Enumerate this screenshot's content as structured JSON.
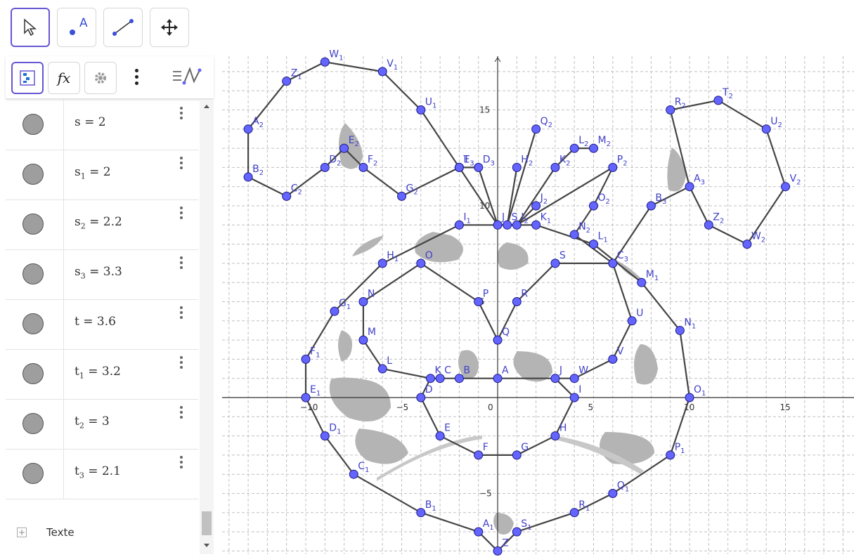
{
  "toolbar": {
    "tools": [
      "move-tool",
      "point-tool",
      "segment-tool",
      "move-graphics-tool"
    ],
    "point_tool_label": "A"
  },
  "algebra": {
    "header_icons": [
      "algebra-view-icon",
      "function-icon",
      "settings-icon",
      "more-icon",
      "description-icon"
    ],
    "rows": [
      {
        "name": "s",
        "sub": "",
        "value": "2"
      },
      {
        "name": "s",
        "sub": "1",
        "value": "2"
      },
      {
        "name": "s",
        "sub": "2",
        "value": "2.2"
      },
      {
        "name": "s",
        "sub": "3",
        "value": "3.3"
      },
      {
        "name": "t",
        "sub": "",
        "value": "3.6"
      },
      {
        "name": "t",
        "sub": "1",
        "value": "3.2"
      },
      {
        "name": "t",
        "sub": "2",
        "value": "3"
      },
      {
        "name": "t",
        "sub": "3",
        "value": "2.1"
      }
    ],
    "input_label": "Texte"
  },
  "graph": {
    "x_ticks": [
      "−10",
      "−5",
      "0",
      "5",
      "10",
      "15"
    ],
    "y_ticks": [
      "15",
      "10",
      "5",
      "−5"
    ],
    "point_color": "#6464ff",
    "line_color": "#444444",
    "points": [
      {
        "n": "A",
        "s": "",
        "x": 0,
        "y": 1
      },
      {
        "n": "B",
        "s": "",
        "x": -2,
        "y": 1
      },
      {
        "n": "C",
        "s": "",
        "x": -3,
        "y": 1
      },
      {
        "n": "K",
        "s": "",
        "x": -3.5,
        "y": 1
      },
      {
        "n": "D",
        "s": "",
        "x": -4,
        "y": 0
      },
      {
        "n": "E",
        "s": "",
        "x": -3,
        "y": -2
      },
      {
        "n": "F",
        "s": "",
        "x": -1,
        "y": -3
      },
      {
        "n": "G",
        "s": "",
        "x": 1,
        "y": -3
      },
      {
        "n": "H",
        "s": "",
        "x": 3,
        "y": -2
      },
      {
        "n": "I",
        "s": "",
        "x": 4,
        "y": 0
      },
      {
        "n": "J",
        "s": "",
        "x": 3,
        "y": 1
      },
      {
        "n": "W",
        "s": "",
        "x": 4,
        "y": 1
      },
      {
        "n": "V",
        "s": "",
        "x": 6,
        "y": 2
      },
      {
        "n": "U",
        "s": "",
        "x": 7,
        "y": 4
      },
      {
        "n": "S",
        "s": "",
        "x": 3,
        "y": 7
      },
      {
        "n": "R",
        "s": "",
        "x": 1,
        "y": 5
      },
      {
        "n": "Q",
        "s": "",
        "x": 0,
        "y": 3
      },
      {
        "n": "P",
        "s": "",
        "x": -1,
        "y": 5
      },
      {
        "n": "O",
        "s": "",
        "x": -4,
        "y": 7
      },
      {
        "n": "N",
        "s": "",
        "x": -7,
        "y": 5
      },
      {
        "n": "M",
        "s": "",
        "x": -7,
        "y": 3
      },
      {
        "n": "L",
        "s": "",
        "x": -6,
        "y": 1.5
      },
      {
        "n": "I",
        "s": "1",
        "x": -2,
        "y": 9
      },
      {
        "n": "H",
        "s": "1",
        "x": -6,
        "y": 7
      },
      {
        "n": "G",
        "s": "1",
        "x": -8.5,
        "y": 4.5
      },
      {
        "n": "F",
        "s": "1",
        "x": -10,
        "y": 2
      },
      {
        "n": "E",
        "s": "1",
        "x": -10,
        "y": 0
      },
      {
        "n": "D",
        "s": "1",
        "x": -9,
        "y": -2
      },
      {
        "n": "C",
        "s": "1",
        "x": -7.5,
        "y": -4
      },
      {
        "n": "B",
        "s": "1",
        "x": -4,
        "y": -6
      },
      {
        "n": "A",
        "s": "1",
        "x": -1,
        "y": -7
      },
      {
        "n": "Z",
        "s": "",
        "x": 0,
        "y": -8
      },
      {
        "n": "S",
        "s": "1",
        "x": 1,
        "y": -7
      },
      {
        "n": "R",
        "s": "1",
        "x": 4,
        "y": -6
      },
      {
        "n": "Q",
        "s": "1",
        "x": 6,
        "y": -5
      },
      {
        "n": "P",
        "s": "1",
        "x": 9,
        "y": -3
      },
      {
        "n": "O",
        "s": "1",
        "x": 10,
        "y": 0
      },
      {
        "n": "N",
        "s": "1",
        "x": 9.5,
        "y": 3.5
      },
      {
        "n": "M",
        "s": "1",
        "x": 7.5,
        "y": 6
      },
      {
        "n": "L",
        "s": "1",
        "x": 5,
        "y": 8
      },
      {
        "n": "K",
        "s": "1",
        "x": 2,
        "y": 9
      },
      {
        "n": "J",
        "s": "",
        "x": 0,
        "y": 9
      },
      {
        "n": "S",
        "s": "",
        "x": 0.5,
        "y": 9
      },
      {
        "n": "I",
        "s": "2",
        "x": 1,
        "y": 9
      },
      {
        "n": "T",
        "s": "",
        "x": -2,
        "y": 12
      },
      {
        "n": "E",
        "s": "3",
        "x": -2,
        "y": 12
      },
      {
        "n": "D",
        "s": "3",
        "x": -1,
        "y": 12
      },
      {
        "n": "U",
        "s": "1",
        "x": -4,
        "y": 15
      },
      {
        "n": "V",
        "s": "1",
        "x": -6,
        "y": 17
      },
      {
        "n": "W",
        "s": "1",
        "x": -9,
        "y": 17.5
      },
      {
        "n": "Z",
        "s": "1",
        "x": -11,
        "y": 16.5
      },
      {
        "n": "A",
        "s": "2",
        "x": -13,
        "y": 14
      },
      {
        "n": "B",
        "s": "2",
        "x": -13,
        "y": 11.5
      },
      {
        "n": "C",
        "s": "2",
        "x": -11,
        "y": 10.5
      },
      {
        "n": "D",
        "s": "2",
        "x": -9,
        "y": 12
      },
      {
        "n": "E",
        "s": "2",
        "x": -8,
        "y": 13
      },
      {
        "n": "F",
        "s": "2",
        "x": -7,
        "y": 12
      },
      {
        "n": "G",
        "s": "2",
        "x": -5,
        "y": 10.5
      },
      {
        "n": "H",
        "s": "2",
        "x": 1,
        "y": 12
      },
      {
        "n": "Q",
        "s": "2",
        "x": 2,
        "y": 14
      },
      {
        "n": "J",
        "s": "2",
        "x": 2,
        "y": 10
      },
      {
        "n": "K",
        "s": "2",
        "x": 3,
        "y": 12
      },
      {
        "n": "L",
        "s": "2",
        "x": 4,
        "y": 13
      },
      {
        "n": "M",
        "s": "2",
        "x": 5,
        "y": 13
      },
      {
        "n": "P",
        "s": "2",
        "x": 6,
        "y": 12
      },
      {
        "n": "O",
        "s": "2",
        "x": 5,
        "y": 10
      },
      {
        "n": "N",
        "s": "2",
        "x": 4,
        "y": 8.5
      },
      {
        "n": "C",
        "s": "3",
        "x": 6,
        "y": 7
      },
      {
        "n": "B",
        "s": "3",
        "x": 8,
        "y": 10
      },
      {
        "n": "A",
        "s": "3",
        "x": 10,
        "y": 11
      },
      {
        "n": "R",
        "s": "2",
        "x": 9,
        "y": 15
      },
      {
        "n": "T",
        "s": "2",
        "x": 11.5,
        "y": 15.5
      },
      {
        "n": "U",
        "s": "2",
        "x": 14,
        "y": 14
      },
      {
        "n": "V",
        "s": "2",
        "x": 15,
        "y": 11
      },
      {
        "n": "W",
        "s": "2",
        "x": 13,
        "y": 8
      },
      {
        "n": "Z",
        "s": "2",
        "x": 11,
        "y": 9
      }
    ],
    "polylines": [
      [
        [
          -3.5,
          1
        ],
        [
          -3,
          1
        ],
        [
          -2,
          1
        ],
        [
          0,
          1
        ],
        [
          3,
          1
        ],
        [
          4,
          1
        ]
      ],
      [
        [
          -4,
          0
        ],
        [
          -3,
          -2
        ],
        [
          -1,
          -3
        ],
        [
          1,
          -3
        ],
        [
          3,
          -2
        ],
        [
          4,
          0
        ],
        [
          3,
          1
        ]
      ],
      [
        [
          -3.5,
          1
        ],
        [
          -4,
          0
        ]
      ],
      [
        [
          -6,
          1.5
        ],
        [
          -3.5,
          1
        ]
      ],
      [
        [
          4,
          1
        ],
        [
          6,
          2
        ],
        [
          7,
          4
        ],
        [
          6,
          7
        ],
        [
          3,
          7
        ],
        [
          1,
          5
        ],
        [
          0,
          3
        ],
        [
          -1,
          5
        ],
        [
          -4,
          7
        ],
        [
          -7,
          5
        ],
        [
          -7,
          3
        ],
        [
          -6,
          1.5
        ]
      ],
      [
        [
          -2,
          9
        ],
        [
          -6,
          7
        ],
        [
          -8.5,
          4.5
        ],
        [
          -10,
          2
        ],
        [
          -10,
          0
        ],
        [
          -9,
          -2
        ],
        [
          -7.5,
          -4
        ],
        [
          -4,
          -6
        ],
        [
          -1,
          -7
        ],
        [
          0,
          -8
        ],
        [
          1,
          -7
        ],
        [
          4,
          -6
        ],
        [
          6,
          -5
        ],
        [
          9,
          -3
        ],
        [
          10,
          0
        ],
        [
          9.5,
          3.5
        ],
        [
          7.5,
          6
        ],
        [
          5,
          8
        ],
        [
          2,
          9
        ],
        [
          0,
          9
        ],
        [
          -2,
          9
        ]
      ],
      [
        [
          0,
          9
        ],
        [
          -2,
          12
        ],
        [
          -4,
          15
        ],
        [
          -6,
          17
        ],
        [
          -9,
          17.5
        ],
        [
          -11,
          16.5
        ],
        [
          -13,
          14
        ],
        [
          -13,
          11.5
        ],
        [
          -11,
          10.5
        ],
        [
          -9,
          12
        ],
        [
          -8,
          13
        ],
        [
          -7,
          12
        ],
        [
          -5,
          10.5
        ],
        [
          -2,
          12
        ],
        [
          -1,
          12
        ],
        [
          0,
          9
        ]
      ],
      [
        [
          0.5,
          9
        ],
        [
          1,
          12
        ]
      ],
      [
        [
          0.5,
          9
        ],
        [
          2,
          14
        ]
      ],
      [
        [
          1,
          9
        ],
        [
          2,
          10
        ]
      ],
      [
        [
          1,
          9
        ],
        [
          3,
          12
        ]
      ],
      [
        [
          3,
          12
        ],
        [
          4,
          13
        ],
        [
          5,
          13
        ]
      ],
      [
        [
          1,
          9
        ],
        [
          6,
          12
        ]
      ],
      [
        [
          4,
          8.5
        ],
        [
          5,
          10
        ],
        [
          6,
          12
        ]
      ],
      [
        [
          4,
          8.5
        ],
        [
          6,
          7
        ]
      ],
      [
        [
          6,
          7
        ],
        [
          8,
          10
        ],
        [
          10,
          11
        ],
        [
          9,
          15
        ],
        [
          11.5,
          15.5
        ],
        [
          14,
          14
        ],
        [
          15,
          11
        ],
        [
          13,
          8
        ],
        [
          11,
          9
        ],
        [
          10,
          11
        ]
      ]
    ],
    "blobs_color": "#b4b4b4"
  }
}
